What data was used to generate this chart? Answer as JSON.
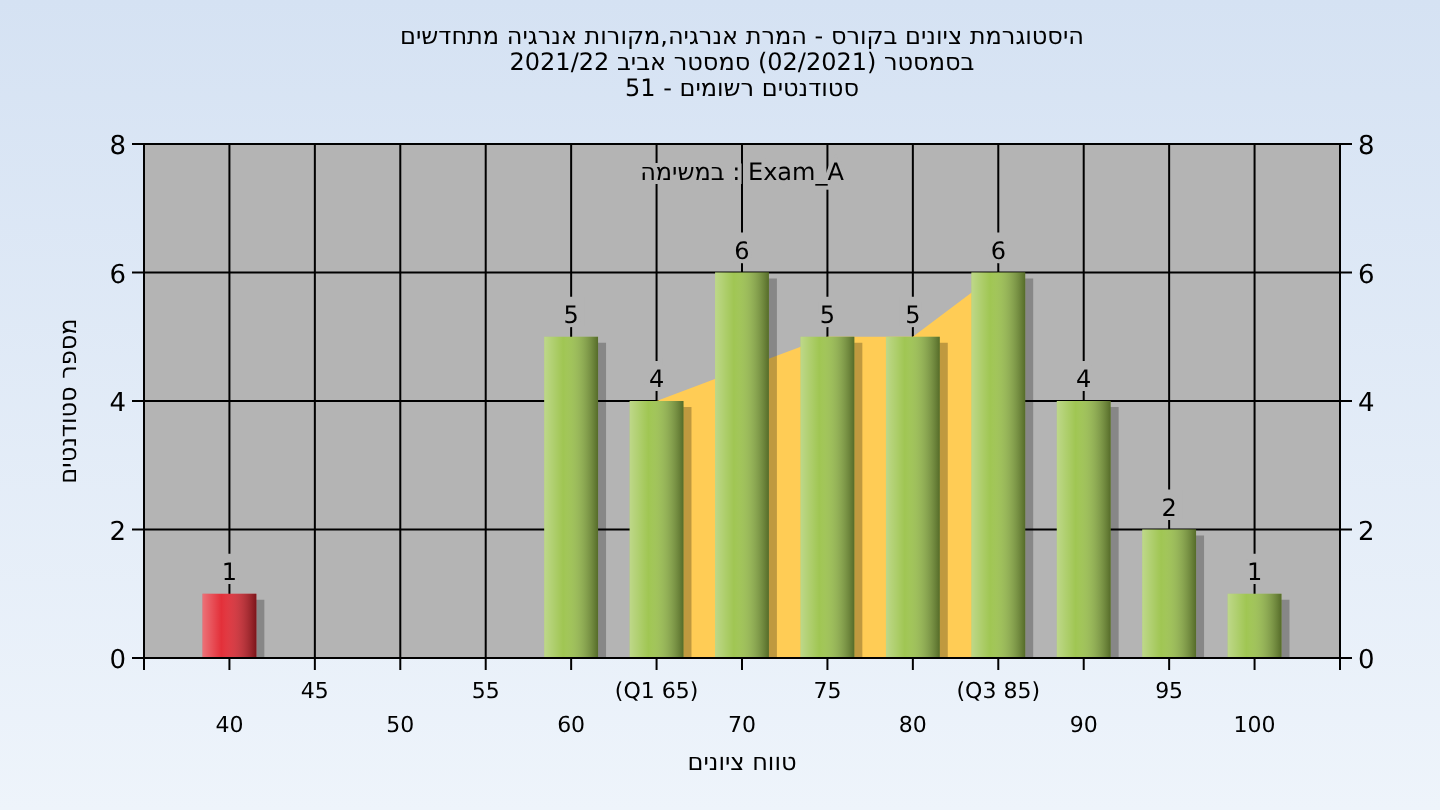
{
  "chart_data": {
    "type": "bar",
    "title": "היסטוגרמת ציונים בקורס - המרת אנרגיה,מקורות אנרגיה מתחדשים",
    "subtitle": "בסמסטר  (02/2021)  סמסטר אביב 2021/22\nסטודנטים רשומים - 51",
    "xlabel": "טווח ציונים",
    "ylabel": "מספר סטודנטים",
    "annotations": [
      "במשימה : Exam_A"
    ],
    "categories": [
      "40",
      "45",
      "50",
      "55",
      "60",
      "(Q1 65)",
      "70",
      "75",
      "80",
      "(Q3 85)",
      "90",
      "95",
      "100"
    ],
    "series": [
      {
        "type": "area",
        "color": "#ffcc55",
        "values": [
          null,
          null,
          null,
          null,
          null,
          4,
          null,
          5,
          5,
          6,
          null,
          null,
          null
        ]
      },
      {
        "colors": [
          "#e2252f",
          "#9bc34a",
          "#9bc34a",
          "#9bc34a",
          "#9bc34a",
          "#9bc34a",
          "#9bc34a",
          "#9bc34a",
          "#9bc34a",
          "#9bc34a",
          "#9bc34a",
          "#9bc34a",
          "#9bc34a"
        ],
        "values": [
          1,
          0,
          0,
          0,
          5,
          4,
          6,
          5,
          5,
          6,
          4,
          2,
          1
        ],
        "value_labels": [
          "1",
          null,
          null,
          null,
          "5",
          "4",
          "6",
          "5",
          "5",
          "6",
          "4",
          "2",
          "1"
        ]
      }
    ],
    "ylim": [
      0,
      8
    ],
    "yticks": [
      0,
      2,
      4,
      6,
      8
    ],
    "y2lim": [
      0,
      8
    ],
    "y2ticks": [
      0,
      2,
      4,
      6,
      8
    ],
    "grid": true
  }
}
